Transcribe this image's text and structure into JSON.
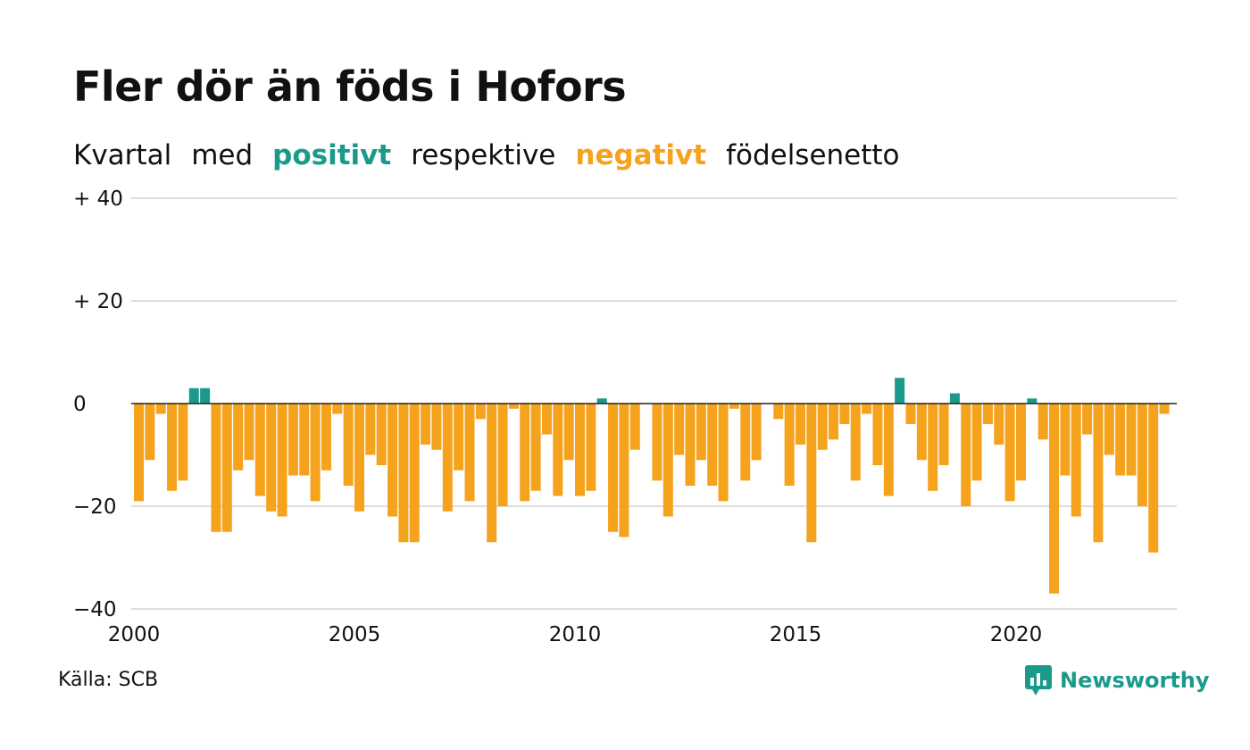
{
  "title": "Fler dör än föds i Hofors",
  "subtitle": {
    "part1": "Kvartal",
    "part2": "med",
    "positive": "positivt",
    "part3": "respektive",
    "negative": "negativt",
    "part4": "födelsenetto"
  },
  "source": "Källa: SCB",
  "brand": "Newsworthy",
  "colors": {
    "positive": "#1a9a8a",
    "negative": "#f5a21d",
    "grid": "#dddddd",
    "zero_line": "#222222"
  },
  "chart_data": {
    "type": "bar",
    "title": "Fler dör än föds i Hofors",
    "x_start": "2000 Q1",
    "frequency": "quarterly",
    "ylim": [
      -40,
      40
    ],
    "y_ticks": [
      {
        "value": 40,
        "label": "+ 40"
      },
      {
        "value": 20,
        "label": "+ 20"
      },
      {
        "value": 0,
        "label": "0"
      },
      {
        "value": -20,
        "label": "−20"
      },
      {
        "value": -40,
        "label": "−40"
      }
    ],
    "x_ticks": [
      "2000",
      "2005",
      "2010",
      "2015",
      "2020"
    ],
    "grid": true,
    "values": [
      -19,
      -11,
      -2,
      -17,
      -15,
      3,
      3,
      -25,
      -25,
      -13,
      -11,
      -18,
      -21,
      -22,
      -14,
      -14,
      -19,
      -13,
      -2,
      -16,
      -21,
      -10,
      -12,
      -22,
      -27,
      -27,
      -8,
      -9,
      -21,
      -13,
      -19,
      -3,
      -27,
      -20,
      -1,
      -19,
      -17,
      -6,
      -18,
      -11,
      -18,
      -17,
      1,
      -25,
      -26,
      -9,
      0,
      -15,
      -22,
      -10,
      -16,
      -11,
      -16,
      -19,
      -1,
      -15,
      -11,
      0,
      -3,
      -16,
      -8,
      -27,
      -9,
      -7,
      -4,
      -15,
      -2,
      -12,
      -18,
      5,
      -4,
      -11,
      -17,
      -12,
      2,
      -20,
      -15,
      -4,
      -8,
      -19,
      -15,
      1,
      -7,
      -37,
      -14,
      -22,
      -6,
      -27,
      -10,
      -14,
      -14,
      -20,
      -29,
      -2
    ]
  }
}
